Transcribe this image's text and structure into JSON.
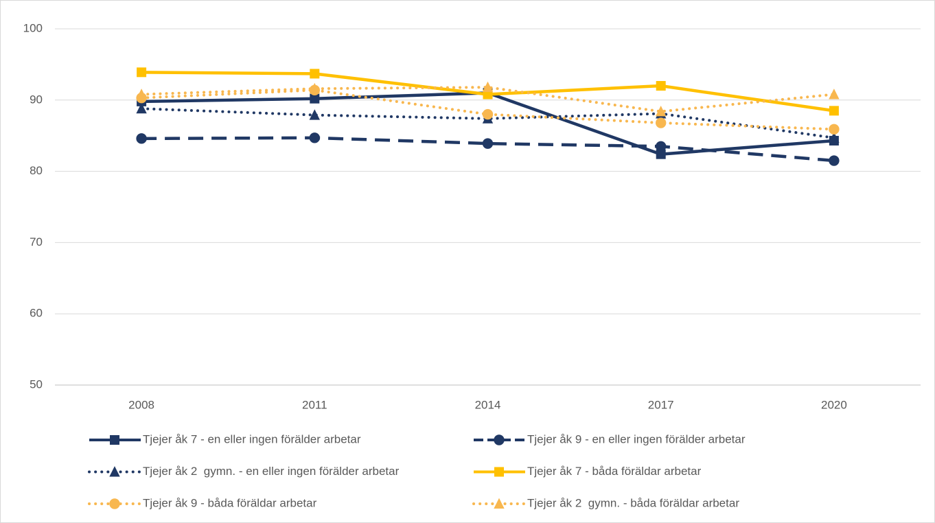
{
  "chart_data": {
    "type": "line",
    "categories": [
      "2008",
      "2011",
      "2014",
      "2017",
      "2020"
    ],
    "ylim": [
      50,
      100
    ],
    "yticks": [
      50,
      60,
      70,
      80,
      90,
      100
    ],
    "grid": true,
    "legend": "bottom",
    "series": [
      {
        "name": "Tjejer åk 7 - en eller ingen förälder arbetar",
        "color": "#203864",
        "line_style": "solid",
        "marker": "square",
        "values": [
          89.8,
          90.2,
          91.0,
          82.4,
          84.3
        ]
      },
      {
        "name": "Tjejer åk 9 - en eller ingen förälder arbetar",
        "color": "#203864",
        "line_style": "dashed",
        "marker": "circle",
        "values": [
          84.6,
          84.7,
          83.9,
          83.5,
          81.5
        ]
      },
      {
        "name": "Tjejer åk 2  gymn. - en eller ingen förälder arbetar",
        "color": "#203864",
        "line_style": "dotted",
        "marker": "triangle",
        "values": [
          88.8,
          87.9,
          87.4,
          88.1,
          84.7
        ]
      },
      {
        "name": "Tjejer åk 7 - båda föräldar arbetar",
        "color": "#FFC000",
        "line_style": "solid",
        "marker": "square",
        "values": [
          93.9,
          93.7,
          90.8,
          92.0,
          88.5
        ]
      },
      {
        "name": "Tjejer åk 9 - båda föräldar arbetar",
        "color": "#F8B74F",
        "line_style": "dotted",
        "marker": "circle",
        "values": [
          90.3,
          91.4,
          88.0,
          86.8,
          85.9
        ]
      },
      {
        "name": "Tjejer åk 2  gymn. - båda föräldar arbetar",
        "color": "#F8B74F",
        "line_style": "dotted",
        "marker": "triangle",
        "values": [
          90.8,
          91.6,
          91.8,
          88.4,
          90.8
        ]
      }
    ]
  }
}
